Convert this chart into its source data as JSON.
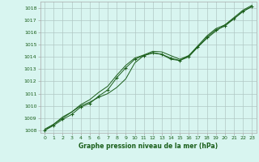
{
  "title": "Graphe pression niveau de la mer (hPa)",
  "bg_color": "#d8f5f0",
  "grid_color": "#b0c8c4",
  "line_color": "#1a5e1a",
  "spine_color": "#aaaaaa",
  "xlim": [
    -0.5,
    23.5
  ],
  "ylim": [
    1007.8,
    1018.5
  ],
  "yticks": [
    1008,
    1009,
    1010,
    1011,
    1012,
    1013,
    1014,
    1015,
    1016,
    1017,
    1018
  ],
  "xticks": [
    0,
    1,
    2,
    3,
    4,
    5,
    6,
    7,
    8,
    9,
    10,
    11,
    12,
    13,
    14,
    15,
    16,
    17,
    18,
    19,
    20,
    21,
    22,
    23
  ],
  "line1_x": [
    0,
    1,
    2,
    3,
    4,
    5,
    6,
    7,
    8,
    9,
    10,
    11,
    12,
    13,
    14,
    15,
    16,
    17,
    18,
    19,
    20,
    21,
    22,
    23
  ],
  "line1_y": [
    1008.0,
    1008.5,
    1009.0,
    1009.5,
    1010.0,
    1010.3,
    1010.7,
    1011.0,
    1011.5,
    1012.2,
    1013.5,
    1014.1,
    1014.3,
    1014.2,
    1013.8,
    1013.7,
    1014.1,
    1014.8,
    1015.5,
    1016.1,
    1016.6,
    1017.1,
    1017.7,
    1018.1
  ],
  "line2_x": [
    0,
    1,
    2,
    3,
    4,
    5,
    6,
    7,
    8,
    9,
    10,
    11,
    12,
    13,
    14,
    15,
    16,
    17,
    18,
    19,
    20,
    21,
    22,
    23
  ],
  "line2_y": [
    1008.1,
    1008.5,
    1009.1,
    1009.5,
    1010.1,
    1010.5,
    1011.1,
    1011.6,
    1012.5,
    1013.3,
    1013.9,
    1014.15,
    1014.45,
    1014.4,
    1014.1,
    1013.8,
    1014.1,
    1014.9,
    1015.7,
    1016.3,
    1016.6,
    1017.2,
    1017.8,
    1018.2
  ],
  "line3_x": [
    0,
    1,
    2,
    3,
    4,
    5,
    6,
    7,
    8,
    9,
    10,
    11,
    12,
    13,
    14,
    15,
    16,
    17,
    18,
    19,
    20,
    21,
    22,
    23
  ],
  "line3_y": [
    1008.0,
    1008.4,
    1008.9,
    1009.3,
    1009.9,
    1010.2,
    1010.8,
    1011.3,
    1012.3,
    1013.1,
    1013.8,
    1014.1,
    1014.35,
    1014.2,
    1013.9,
    1013.7,
    1014.0,
    1014.8,
    1015.6,
    1016.2,
    1016.5,
    1017.1,
    1017.7,
    1018.1
  ]
}
